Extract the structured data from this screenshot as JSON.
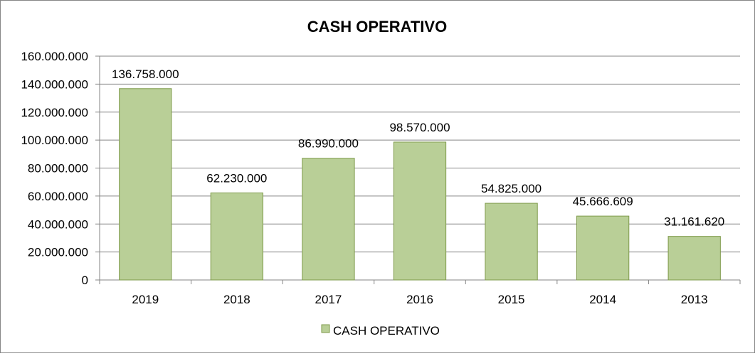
{
  "chart_data": {
    "type": "bar",
    "title": "CASH OPERATIVO",
    "xlabel": "",
    "ylabel": "",
    "categories": [
      "2019",
      "2018",
      "2017",
      "2016",
      "2015",
      "2014",
      "2013"
    ],
    "series": [
      {
        "name": "CASH OPERATIVO",
        "values": [
          136758000,
          62230000,
          86990000,
          98570000,
          54825000,
          45666609,
          31161620
        ],
        "labels": [
          "136.758.000",
          "62.230.000",
          "86.990.000",
          "98.570.000",
          "54.825.000",
          "45.666.609",
          "31.161.620"
        ],
        "color": "#B9CF97",
        "edge_color": "#7E9A4A"
      }
    ],
    "ylim": [
      0,
      160000000
    ],
    "y_ticks": [
      0,
      20000000,
      40000000,
      60000000,
      80000000,
      100000000,
      120000000,
      140000000,
      160000000
    ],
    "y_tick_labels": [
      "0",
      "20.000.000",
      "40.000.000",
      "60.000.000",
      "80.000.000",
      "100.000.000",
      "120.000.000",
      "140.000.000",
      "160.000.000"
    ],
    "grid": true,
    "legend_position": "bottom"
  }
}
